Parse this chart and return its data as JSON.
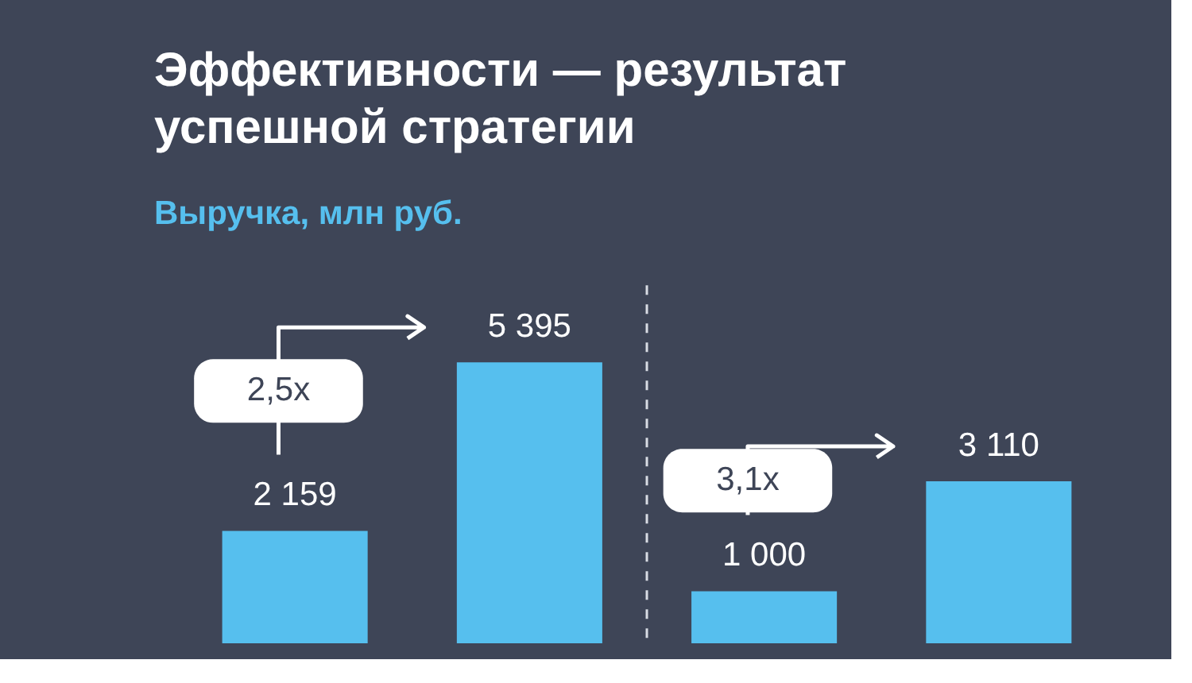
{
  "chart_data": {
    "type": "bar",
    "title": [
      "Эффективности — результат",
      "успешной стратегии"
    ],
    "subtitle": "Выручка, млн руб.",
    "categories": [
      null,
      null,
      null,
      null
    ],
    "values": [
      2159,
      5395,
      1000,
      3110
    ],
    "color": "#56bfee",
    "data_labels": true,
    "value_labels": [
      "2 159",
      "5 395",
      "1 000",
      "3 110"
    ],
    "annotations": [
      "2,5x",
      "3,1x"
    ]
  }
}
